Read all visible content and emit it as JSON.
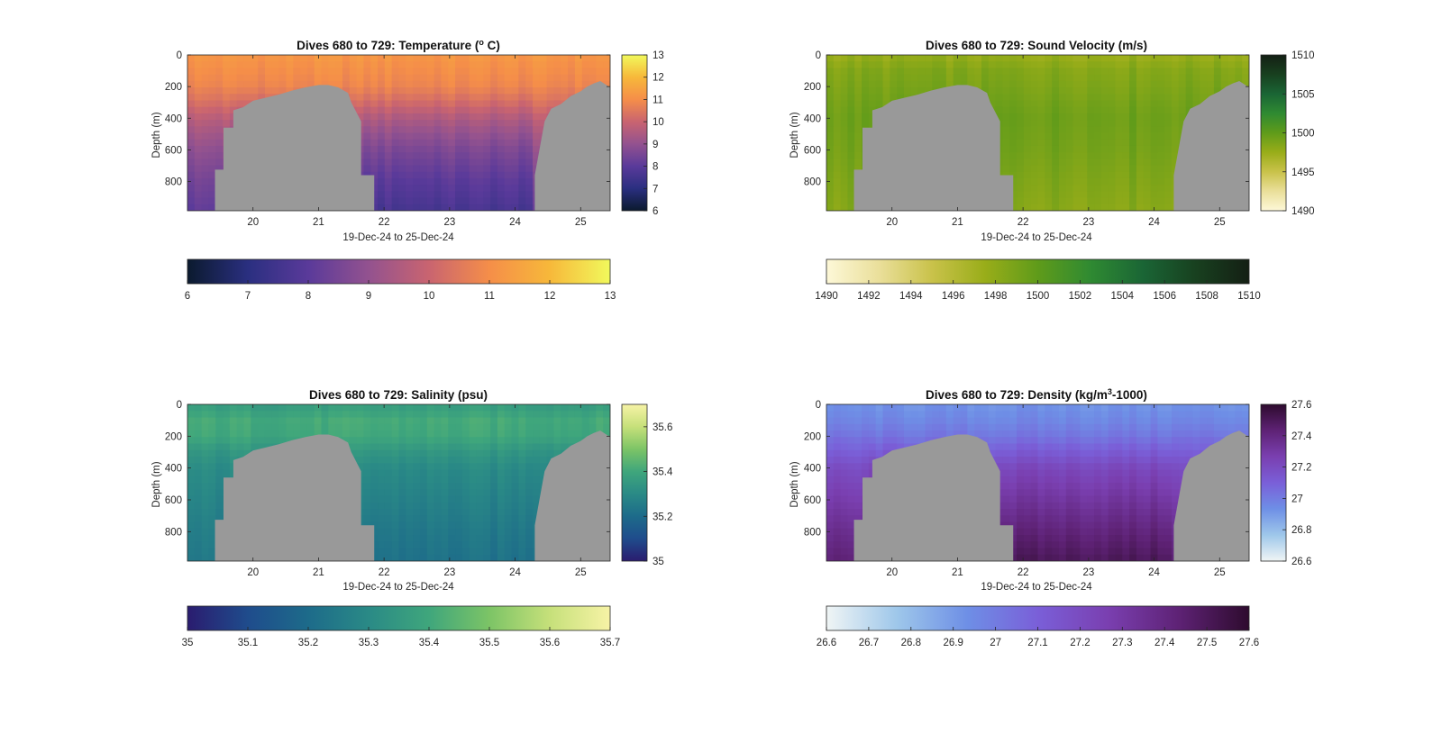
{
  "chart_data": [
    {
      "type": "heatmap",
      "title_prefix": "Dives 680 to 729: Temperature (",
      "title_sup": "o",
      "title_suffix": " C)",
      "xlabel": "19-Dec-24 to 25-Dec-24",
      "ylabel": "Depth (m)",
      "xlim": [
        19,
        25.45
      ],
      "ylim": [
        0,
        985
      ],
      "y_reversed": true,
      "xticks": [
        20,
        21,
        22,
        23,
        24,
        25
      ],
      "yticks": [
        0,
        200,
        400,
        600,
        800
      ],
      "colorbar_ticks": [
        6,
        7,
        8,
        9,
        10,
        11,
        12,
        13
      ],
      "horizontal_colorbar_ticks": [
        6,
        7,
        8,
        9,
        10,
        11,
        12,
        13
      ],
      "clim": [
        6,
        13
      ],
      "colormap": [
        "#0b1a2e",
        "#2a2f80",
        "#5a3a9a",
        "#93528f",
        "#c96470",
        "#f58e49",
        "#f7b83a",
        "#f1f95c"
      ],
      "depth_profile": {
        "depths": [
          0,
          100,
          200,
          300,
          400,
          500,
          600,
          700,
          800,
          900,
          985
        ],
        "values": [
          11.2,
          11.0,
          10.8,
          10.2,
          9.5,
          9.0,
          8.6,
          8.3,
          8.0,
          7.8,
          7.6
        ]
      },
      "shallow_end_value": 10.9
    },
    {
      "type": "heatmap",
      "title_prefix": "Dives 680 to 729: Sound Velocity (m/s)",
      "title_sup": "",
      "title_suffix": "",
      "xlabel": "19-Dec-24 to 25-Dec-24",
      "ylabel": "Depth (m)",
      "xlim": [
        19,
        25.45
      ],
      "ylim": [
        0,
        985
      ],
      "y_reversed": true,
      "xticks": [
        20,
        21,
        22,
        23,
        24,
        25
      ],
      "yticks": [
        0,
        200,
        400,
        600,
        800
      ],
      "colorbar_ticks": [
        1490,
        1495,
        1500,
        1505,
        1510
      ],
      "horizontal_colorbar_ticks": [
        1490,
        1492,
        1494,
        1496,
        1498,
        1500,
        1502,
        1504,
        1506,
        1508,
        1510
      ],
      "clim": [
        1490,
        1510
      ],
      "colormap": [
        "#fdf8d8",
        "#eadf9a",
        "#c9c24a",
        "#99ad19",
        "#5f9b1a",
        "#2f8a32",
        "#1a6535",
        "#18401f",
        "#141f14"
      ],
      "depth_profile": {
        "depths": [
          0,
          100,
          200,
          300,
          400,
          600,
          800,
          985
        ],
        "values": [
          1497.5,
          1498.5,
          1498.8,
          1499.2,
          1499.5,
          1499.2,
          1498.7,
          1498.3
        ]
      },
      "shallow_end_value": 1498.8
    },
    {
      "type": "heatmap",
      "title_prefix": "Dives 680 to 729: Salinity (psu)",
      "title_sup": "",
      "title_suffix": "",
      "xlabel": "19-Dec-24 to 25-Dec-24",
      "ylabel": "Depth (m)",
      "xlim": [
        19,
        25.45
      ],
      "ylim": [
        0,
        985
      ],
      "y_reversed": true,
      "xticks": [
        20,
        21,
        22,
        23,
        24,
        25
      ],
      "yticks": [
        0,
        200,
        400,
        600,
        800
      ],
      "colorbar_ticks": [
        35,
        35.2,
        35.4,
        35.6
      ],
      "horizontal_colorbar_ticks": [
        35,
        35.1,
        35.2,
        35.3,
        35.4,
        35.5,
        35.6,
        35.7
      ],
      "clim": [
        35,
        35.7
      ],
      "colormap": [
        "#2a1c6f",
        "#1f4c8c",
        "#1d6b8a",
        "#2a8a86",
        "#3fa67c",
        "#7cc466",
        "#c6e07a",
        "#f7f3a6"
      ],
      "depth_profile": {
        "depths": [
          0,
          100,
          200,
          300,
          400,
          600,
          800,
          985
        ],
        "values": [
          35.36,
          35.41,
          35.4,
          35.34,
          35.3,
          35.27,
          35.24,
          35.22
        ]
      },
      "shallow_end_value": 35.33
    },
    {
      "type": "heatmap",
      "title_prefix": "Dives 680 to 729: Density (kg/m",
      "title_sup": "3",
      "title_suffix": "-1000)",
      "xlabel": "19-Dec-24 to 25-Dec-24",
      "ylabel": "Depth (m)",
      "xlim": [
        19,
        25.45
      ],
      "ylim": [
        0,
        985
      ],
      "y_reversed": true,
      "xticks": [
        20,
        21,
        22,
        23,
        24,
        25
      ],
      "yticks": [
        0,
        200,
        400,
        600,
        800
      ],
      "colorbar_ticks": [
        26.6,
        26.8,
        27,
        27.2,
        27.4,
        27.6
      ],
      "horizontal_colorbar_ticks": [
        26.6,
        26.7,
        26.8,
        26.9,
        27,
        27.1,
        27.2,
        27.3,
        27.4,
        27.5,
        27.6
      ],
      "clim": [
        26.6,
        27.6
      ],
      "colormap": [
        "#f0f5f5",
        "#9ec7ea",
        "#6e8fe6",
        "#7a5fd8",
        "#7a3fb0",
        "#5e2275",
        "#2e0b2e"
      ],
      "depth_profile": {
        "depths": [
          0,
          100,
          200,
          300,
          400,
          600,
          800,
          985
        ],
        "values": [
          26.92,
          26.96,
          27.02,
          27.12,
          27.22,
          27.32,
          27.42,
          27.5
        ]
      },
      "shallow_end_value": 26.98
    }
  ],
  "seafloor": {
    "fill_color": "#999999",
    "times": [
      19.0,
      19.42,
      19.42,
      19.55,
      19.55,
      19.7,
      19.7,
      19.85,
      20.0,
      20.2,
      20.4,
      20.6,
      20.8,
      21.0,
      21.15,
      21.3,
      21.45,
      21.5,
      21.65,
      21.65,
      21.85,
      21.85,
      24.3,
      24.3,
      24.45,
      24.55,
      24.7,
      24.85,
      25.0,
      25.1,
      25.2,
      25.3,
      25.45
    ],
    "depths": [
      985,
      985,
      725,
      725,
      460,
      460,
      350,
      330,
      290,
      270,
      250,
      225,
      205,
      190,
      190,
      205,
      240,
      300,
      420,
      760,
      760,
      985,
      985,
      760,
      420,
      340,
      310,
      260,
      230,
      200,
      180,
      165,
      205
    ]
  }
}
